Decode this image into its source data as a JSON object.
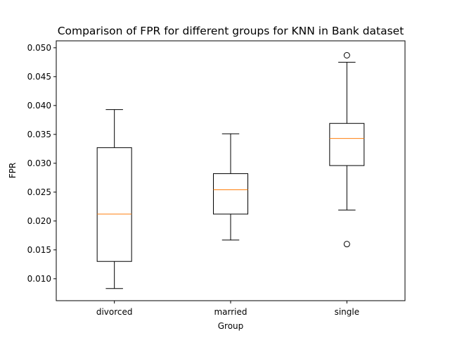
{
  "chart_data": {
    "type": "box",
    "title": "Comparison of FPR for different groups for KNN in Bank dataset",
    "xlabel": "Group",
    "ylabel": "FPR",
    "ylim": [
      0.0062,
      0.0512
    ],
    "yticks": [
      "0.010",
      "0.015",
      "0.020",
      "0.025",
      "0.030",
      "0.035",
      "0.040",
      "0.045",
      "0.050"
    ],
    "grid": false,
    "categories": [
      "divorced",
      "married",
      "single"
    ],
    "boxes": [
      {
        "category": "divorced",
        "whisker_low": 0.0083,
        "q1": 0.013,
        "median": 0.0212,
        "q3": 0.0327,
        "whisker_high": 0.0393,
        "outliers": []
      },
      {
        "category": "married",
        "whisker_low": 0.0167,
        "q1": 0.0212,
        "median": 0.0254,
        "q3": 0.0282,
        "whisker_high": 0.0351,
        "outliers": []
      },
      {
        "category": "single",
        "whisker_low": 0.0219,
        "q1": 0.0296,
        "median": 0.0343,
        "q3": 0.0369,
        "whisker_high": 0.0475,
        "outliers": [
          0.0487,
          0.016
        ]
      }
    ],
    "colors": {
      "box": "#000000",
      "median": "#ff7f0e"
    }
  }
}
